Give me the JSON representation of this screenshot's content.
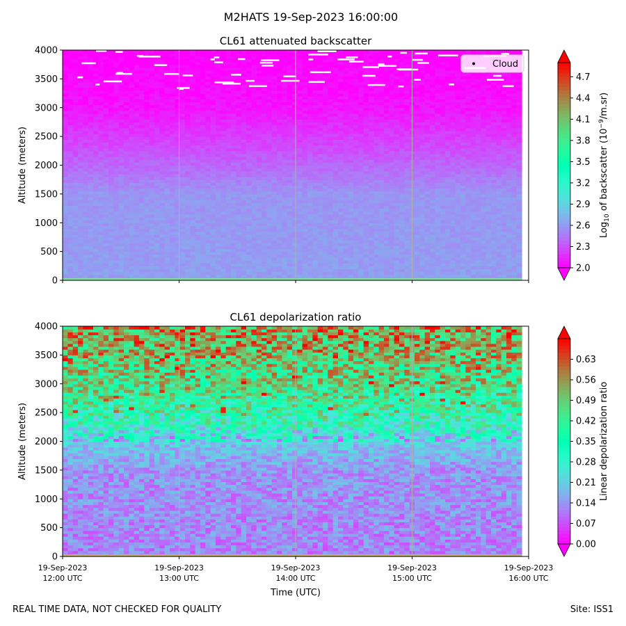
{
  "suptitle": "M2HATS 19-Sep-2023 16:00:00",
  "footer_left": "REAL TIME DATA, NOT CHECKED FOR QUALITY",
  "footer_right": "Site: ISS1",
  "chart_data": [
    {
      "type": "heatmap",
      "title": "CL61 attenuated backscatter",
      "ylabel": "Altitude (meters)",
      "xlabel": "",
      "ylim": [
        0,
        4000
      ],
      "yticks": [
        0,
        500,
        1000,
        1500,
        2000,
        2500,
        3000,
        3500,
        4000
      ],
      "xticks": [
        "12:00 UTC",
        "13:00 UTC",
        "14:00 UTC",
        "15:00 UTC",
        "16:00 UTC"
      ],
      "xtick_date": "19-Sep-2023",
      "show_xtick_labels": false,
      "colormap": "rainbow",
      "colorbar": {
        "label_base": "Log",
        "label_sub": "10",
        "label_mid": " of backscatter (10",
        "label_sup": "−9",
        "label_end": "/m.sr)",
        "range": [
          2.0,
          4.9
        ],
        "ticks": [
          "2.0",
          "2.3",
          "2.6",
          "2.9",
          "3.2",
          "3.5",
          "3.8",
          "4.1",
          "4.4",
          "4.7"
        ],
        "extend": "both"
      },
      "legend": {
        "entries": [
          "Cloud"
        ],
        "position": "top-right"
      },
      "profile": [
        {
          "alt": 0,
          "value": 2.62
        },
        {
          "alt": 1500,
          "value": 2.58
        },
        {
          "alt": 1900,
          "value": 2.42
        },
        {
          "alt": 2400,
          "value": 2.25
        },
        {
          "alt": 3000,
          "value": 2.07
        },
        {
          "alt": 4000,
          "value": 2.0
        }
      ],
      "cloud_altitude_range": [
        3300,
        4000
      ]
    },
    {
      "type": "heatmap",
      "title": "CL61 depolarization ratio",
      "ylabel": "Altitude (meters)",
      "xlabel": "Time (UTC)",
      "ylim": [
        0,
        4000
      ],
      "yticks": [
        0,
        500,
        1000,
        1500,
        2000,
        2500,
        3000,
        3500,
        4000
      ],
      "xticks": [
        "12:00 UTC",
        "13:00 UTC",
        "14:00 UTC",
        "15:00 UTC",
        "16:00 UTC"
      ],
      "xtick_date": "19-Sep-2023",
      "show_xtick_labels": true,
      "colormap": "rainbow",
      "colorbar": {
        "label": "Linear depolarization ratio",
        "range": [
          0.0,
          0.7
        ],
        "ticks": [
          "0.00",
          "0.07",
          "0.14",
          "0.21",
          "0.28",
          "0.35",
          "0.42",
          "0.49",
          "0.56",
          "0.63"
        ],
        "extend": "both"
      },
      "profile": [
        {
          "alt": 0,
          "value": 0.12
        },
        {
          "alt": 1500,
          "value": 0.14
        },
        {
          "alt": 1950,
          "value": 0.2
        },
        {
          "alt": 2300,
          "value": 0.33
        },
        {
          "alt": 2800,
          "value": 0.42
        },
        {
          "alt": 3400,
          "value": 0.5
        },
        {
          "alt": 4000,
          "value": 0.55
        }
      ]
    }
  ]
}
